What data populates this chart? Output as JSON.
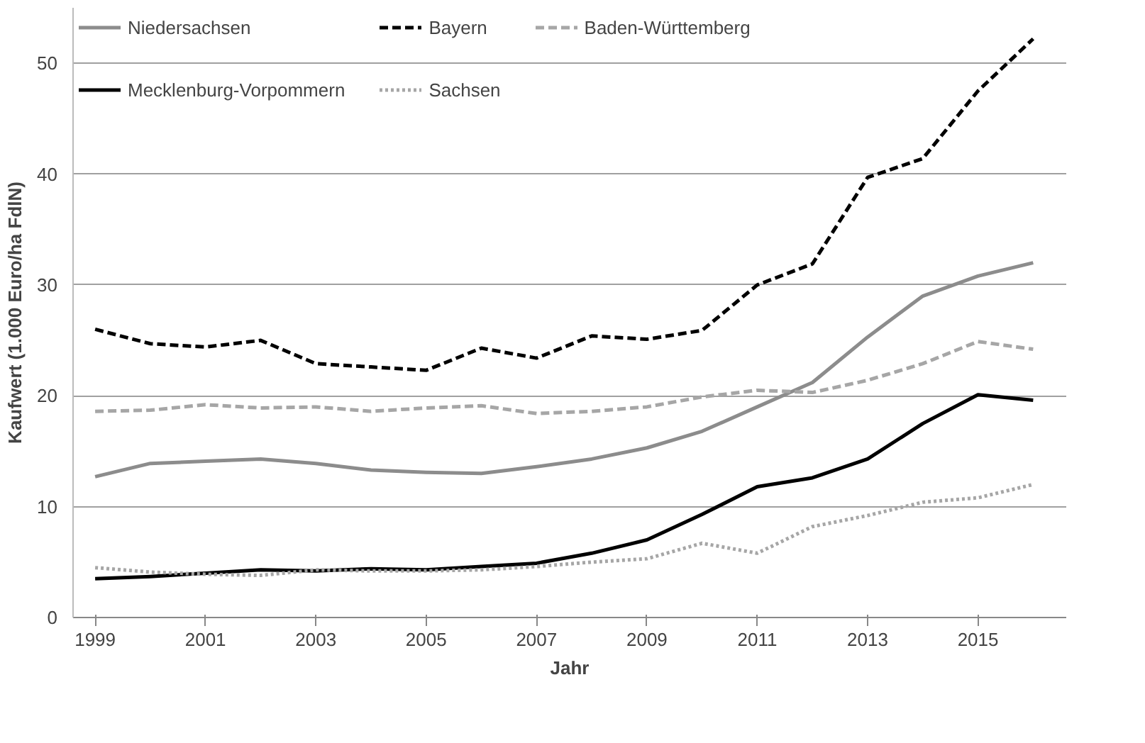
{
  "chart_data": {
    "type": "line",
    "xlabel": "Jahr",
    "ylabel": "Kaufwert (1.000 Euro/ha FdlN)",
    "x": [
      1999,
      2000,
      2001,
      2002,
      2003,
      2004,
      2005,
      2006,
      2007,
      2008,
      2009,
      2010,
      2011,
      2012,
      2013,
      2014,
      2015,
      2016
    ],
    "xlim": [
      1998.6,
      2016.6
    ],
    "xticks": [
      1999,
      2001,
      2003,
      2005,
      2007,
      2009,
      2011,
      2013,
      2015
    ],
    "ylim": [
      0,
      55
    ],
    "yticks": [
      0,
      10,
      20,
      30,
      40,
      50
    ],
    "grid": "y",
    "legend": "top",
    "series": [
      {
        "name": "Niedersachsen",
        "color": "#8c8c8c",
        "line_style": "solid",
        "values": [
          12.7,
          13.9,
          14.1,
          14.3,
          13.9,
          13.3,
          13.1,
          13.0,
          13.6,
          14.3,
          15.3,
          16.8,
          19.0,
          21.2,
          25.3,
          29.0,
          30.8,
          32.0
        ]
      },
      {
        "name": "Bayern",
        "color": "#000000",
        "line_style": "dashed",
        "values": [
          26.0,
          24.7,
          24.4,
          25.0,
          22.9,
          22.6,
          22.3,
          24.3,
          23.4,
          25.4,
          25.1,
          25.9,
          30.0,
          31.9,
          39.7,
          41.4,
          47.5,
          52.2
        ]
      },
      {
        "name": "Baden-Württemberg",
        "color": "#a6a6a6",
        "line_style": "dashed",
        "values": [
          18.6,
          18.7,
          19.2,
          18.9,
          19.0,
          18.6,
          18.9,
          19.1,
          18.4,
          18.6,
          19.0,
          19.9,
          20.5,
          20.3,
          21.4,
          22.9,
          24.9,
          24.2
        ]
      },
      {
        "name": "Mecklenburg-Vorpommern",
        "color": "#000000",
        "line_style": "solid",
        "values": [
          3.5,
          3.7,
          4.0,
          4.3,
          4.2,
          4.4,
          4.3,
          4.6,
          4.9,
          5.8,
          7.0,
          9.3,
          11.8,
          12.6,
          14.3,
          17.5,
          20.1,
          19.6
        ]
      },
      {
        "name": "Sachsen",
        "color": "#a6a6a6",
        "line_style": "dotted",
        "values": [
          4.5,
          4.1,
          3.9,
          3.8,
          4.3,
          4.2,
          4.2,
          4.3,
          4.6,
          5.0,
          5.3,
          6.7,
          5.8,
          8.2,
          9.2,
          10.4,
          10.8,
          12.0
        ]
      }
    ]
  }
}
